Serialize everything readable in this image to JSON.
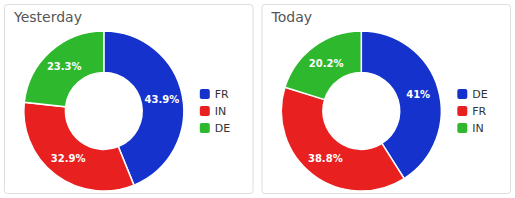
{
  "chart_data": [
    {
      "type": "donut",
      "title": "Yesterday",
      "categories": [
        "FR",
        "IN",
        "DE"
      ],
      "values": [
        43.9,
        32.9,
        23.3
      ],
      "value_labels": [
        "43.9%",
        "32.9%",
        "23.3%"
      ],
      "colors": [
        "#1533cc",
        "#e82020",
        "#2db82d"
      ],
      "data_labels": true,
      "legend": "right"
    },
    {
      "type": "donut",
      "title": "Today",
      "categories": [
        "DE",
        "FR",
        "IN"
      ],
      "values": [
        41.0,
        38.8,
        20.2
      ],
      "value_labels": [
        "41%",
        "38.8%",
        "20.2%"
      ],
      "colors": [
        "#1533cc",
        "#e82020",
        "#2db82d"
      ],
      "data_labels": true,
      "legend": "right"
    }
  ]
}
